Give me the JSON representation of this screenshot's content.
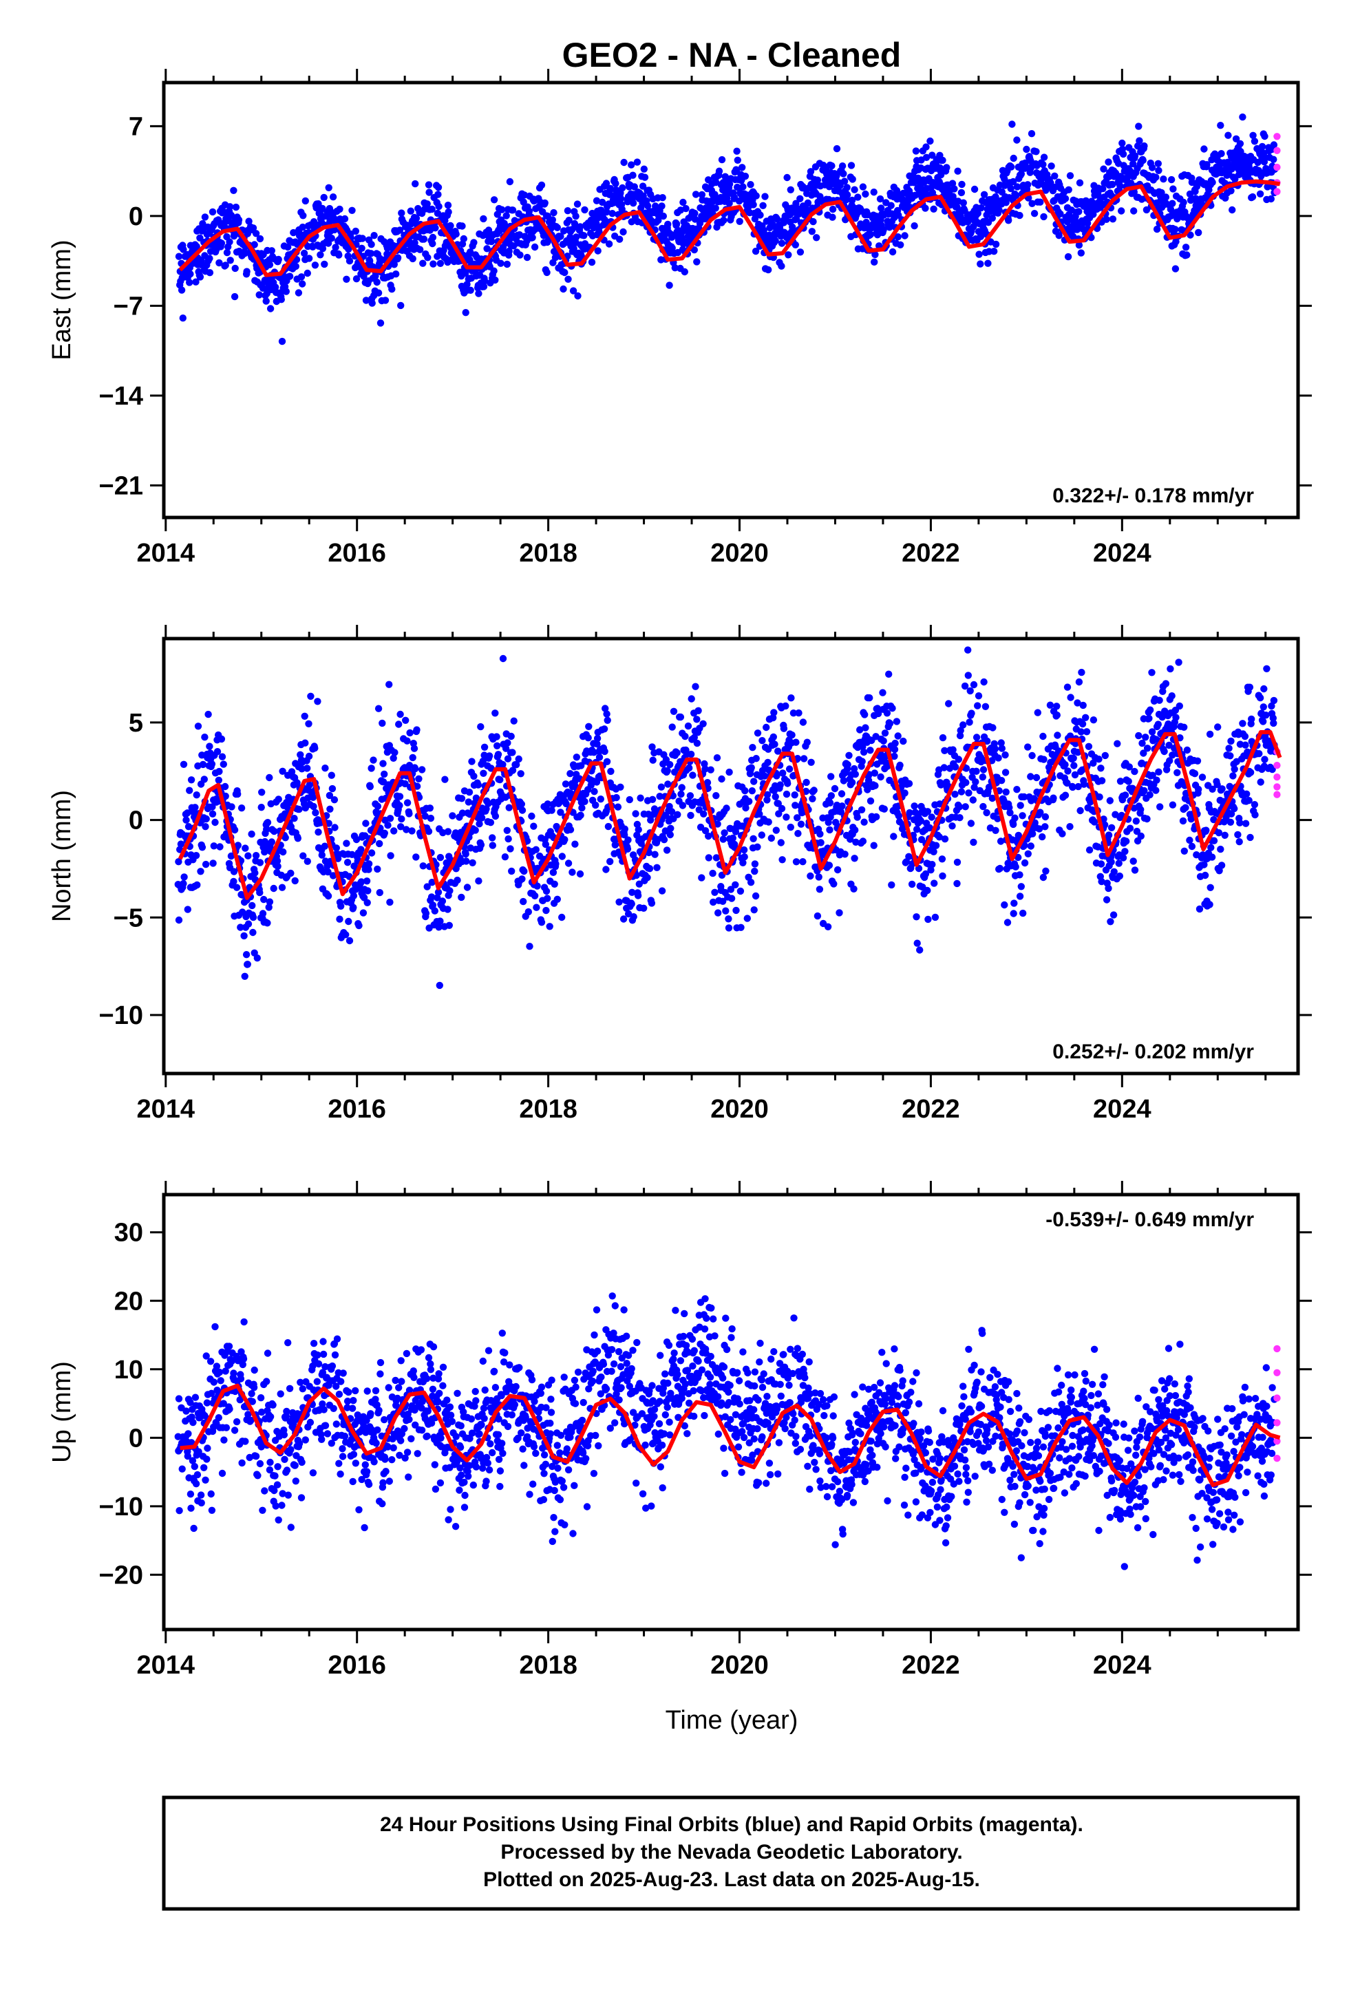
{
  "title": "GEO2  - NA - Cleaned",
  "xlabel": "Time (year)",
  "footer": {
    "line1": "24 Hour Positions Using Final Orbits (blue) and Rapid Orbits (magenta).",
    "line2": "Processed by the Nevada Geodetic Laboratory.",
    "line3": "Plotted on 2025-Aug-23. Last data on 2025-Aug-15."
  },
  "colors": {
    "final": "#0000ff",
    "rapid": "#ff33ff",
    "model": "#ff0000",
    "axis": "#000000"
  },
  "chart_data": [
    {
      "type": "scatter",
      "name": "east",
      "ylabel": "East (mm)",
      "ylim": [
        -23.5,
        10.4
      ],
      "yticks": [
        7,
        0,
        -7,
        -14,
        -21
      ],
      "ytick_labels": [
        "7",
        "0",
        "−7",
        "−14",
        "−21"
      ],
      "xlim": [
        2013.98,
        2025.84
      ],
      "xticks": [
        2014,
        2016,
        2018,
        2020,
        2022,
        2024
      ],
      "xtick_labels": [
        "2014",
        "2016",
        "2018",
        "2020",
        "2022",
        "2024"
      ],
      "rate_text": "0.322+/- 0.178 mm/yr",
      "rate_position": "bottom-right",
      "model": {
        "x": [
          2014.15,
          2014.3,
          2014.45,
          2014.6,
          2014.75,
          2014.9,
          2015.05,
          2015.2,
          2015.35,
          2015.5,
          2015.65,
          2015.8,
          2015.95,
          2016.1,
          2016.25,
          2016.4,
          2016.55,
          2016.7,
          2016.85,
          2017.0,
          2017.15,
          2017.3,
          2017.45,
          2017.6,
          2017.75,
          2017.9,
          2018.05,
          2018.2,
          2018.35,
          2018.5,
          2018.65,
          2018.8,
          2018.95,
          2019.1,
          2019.25,
          2019.4,
          2019.55,
          2019.7,
          2019.85,
          2020.0,
          2020.15,
          2020.3,
          2020.45,
          2020.6,
          2020.75,
          2020.9,
          2021.05,
          2021.2,
          2021.35,
          2021.5,
          2021.65,
          2021.8,
          2021.95,
          2022.1,
          2022.25,
          2022.4,
          2022.55,
          2022.7,
          2022.85,
          2023.0,
          2023.15,
          2023.3,
          2023.45,
          2023.6,
          2023.75,
          2023.9,
          2024.05,
          2024.2,
          2024.35,
          2024.5,
          2024.65,
          2024.8,
          2024.95,
          2025.1,
          2025.25,
          2025.4,
          2025.55,
          2025.65
        ],
        "y": [
          -4.2,
          -3.1,
          -2.0,
          -1.2,
          -1.0,
          -2.6,
          -4.6,
          -4.5,
          -3.0,
          -1.6,
          -0.9,
          -0.7,
          -2.3,
          -4.2,
          -4.3,
          -2.8,
          -1.4,
          -0.6,
          -0.4,
          -2.1,
          -4.0,
          -4.0,
          -2.5,
          -1.0,
          -0.3,
          -0.1,
          -1.8,
          -3.8,
          -3.7,
          -2.2,
          -0.7,
          0.1,
          0.3,
          -1.4,
          -3.4,
          -3.3,
          -1.8,
          -0.3,
          0.5,
          0.7,
          -1.1,
          -3.0,
          -2.9,
          -1.4,
          0.1,
          0.9,
          1.1,
          -0.8,
          -2.7,
          -2.6,
          -1.0,
          0.4,
          1.3,
          1.5,
          -0.4,
          -2.4,
          -2.2,
          -0.7,
          0.8,
          1.7,
          1.9,
          -0.1,
          -2.0,
          -1.9,
          -0.3,
          1.2,
          2.1,
          2.3,
          0.3,
          -1.7,
          -1.5,
          0.0,
          1.5,
          2.3,
          2.6,
          2.7,
          2.6,
          2.5
        ]
      },
      "rapid": {
        "x": [
          2025.62,
          2025.62,
          2025.62,
          2025.62,
          2025.62
        ],
        "y": [
          6.2,
          5.1,
          3.8,
          2.6,
          1.9
        ]
      }
    },
    {
      "type": "scatter",
      "name": "north",
      "ylabel": "North (mm)",
      "ylim": [
        -13.0,
        9.3
      ],
      "yticks": [
        5,
        0,
        -5,
        -10
      ],
      "ytick_labels": [
        "5",
        "0",
        "−5",
        "−10"
      ],
      "xlim": [
        2013.98,
        2025.84
      ],
      "xticks": [
        2014,
        2016,
        2018,
        2020,
        2022,
        2024
      ],
      "xtick_labels": [
        "2014",
        "2016",
        "2018",
        "2020",
        "2022",
        "2024"
      ],
      "rate_text": "0.252+/- 0.202 mm/yr",
      "rate_position": "bottom-right",
      "model": {
        "x": [
          2014.15,
          2014.3,
          2014.45,
          2014.55,
          2014.7,
          2014.85,
          2015.0,
          2015.15,
          2015.3,
          2015.45,
          2015.55,
          2015.7,
          2015.85,
          2016.0,
          2016.15,
          2016.3,
          2016.45,
          2016.55,
          2016.7,
          2016.85,
          2017.0,
          2017.15,
          2017.3,
          2017.45,
          2017.55,
          2017.7,
          2017.85,
          2018.0,
          2018.15,
          2018.3,
          2018.45,
          2018.55,
          2018.7,
          2018.85,
          2019.0,
          2019.15,
          2019.3,
          2019.45,
          2019.55,
          2019.7,
          2019.85,
          2020.0,
          2020.15,
          2020.3,
          2020.45,
          2020.55,
          2020.7,
          2020.85,
          2021.0,
          2021.15,
          2021.3,
          2021.45,
          2021.55,
          2021.7,
          2021.85,
          2022.0,
          2022.15,
          2022.3,
          2022.45,
          2022.55,
          2022.7,
          2022.85,
          2023.0,
          2023.15,
          2023.3,
          2023.45,
          2023.55,
          2023.7,
          2023.85,
          2024.0,
          2024.15,
          2024.3,
          2024.45,
          2024.55,
          2024.7,
          2024.85,
          2025.0,
          2025.15,
          2025.3,
          2025.45,
          2025.55,
          2025.65
        ],
        "y": [
          -2.0,
          -0.4,
          1.5,
          1.8,
          -1.2,
          -4.0,
          -3.0,
          -1.4,
          0.3,
          2.0,
          2.1,
          -1.0,
          -3.8,
          -2.7,
          -1.0,
          0.7,
          2.4,
          2.4,
          -0.7,
          -3.5,
          -2.3,
          -0.6,
          1.1,
          2.6,
          2.6,
          -0.4,
          -3.2,
          -2.0,
          -0.3,
          1.4,
          2.9,
          2.9,
          -0.1,
          -3.0,
          -1.7,
          0.1,
          1.7,
          3.1,
          3.1,
          0.2,
          -2.7,
          -1.4,
          0.4,
          2.0,
          3.4,
          3.4,
          0.5,
          -2.5,
          -1.1,
          0.7,
          2.3,
          3.6,
          3.6,
          0.7,
          -2.3,
          -0.9,
          0.9,
          2.5,
          3.9,
          3.9,
          1.0,
          -2.0,
          -0.6,
          1.2,
          2.8,
          4.1,
          4.1,
          1.3,
          -1.8,
          -0.3,
          1.5,
          3.1,
          4.4,
          4.4,
          1.6,
          -1.5,
          -0.1,
          1.3,
          2.7,
          4.5,
          4.5,
          3.2
        ]
      },
      "rapid": {
        "x": [
          2025.62,
          2025.62,
          2025.62,
          2025.62,
          2025.62
        ],
        "y": [
          3.5,
          2.8,
          2.2,
          1.7,
          1.3
        ]
      }
    },
    {
      "type": "scatter",
      "name": "up",
      "ylabel": "Up (mm)",
      "ylim": [
        -28,
        35.5
      ],
      "yticks": [
        30,
        20,
        10,
        0,
        -10,
        -20
      ],
      "ytick_labels": [
        "30",
        "20",
        "10",
        "0",
        "−10",
        "−20"
      ],
      "xlim": [
        2013.98,
        2025.84
      ],
      "xticks": [
        2014,
        2016,
        2018,
        2020,
        2022,
        2024
      ],
      "xtick_labels": [
        "2014",
        "2016",
        "2018",
        "2020",
        "2022",
        "2024"
      ],
      "rate_text": "-0.539+/- 0.649 mm/yr",
      "rate_position": "top-right",
      "model": {
        "x": [
          2014.15,
          2014.3,
          2014.45,
          2014.6,
          2014.75,
          2014.9,
          2015.05,
          2015.2,
          2015.35,
          2015.5,
          2015.65,
          2015.8,
          2015.95,
          2016.1,
          2016.25,
          2016.4,
          2016.55,
          2016.7,
          2016.85,
          2017.0,
          2017.15,
          2017.3,
          2017.45,
          2017.6,
          2017.75,
          2017.9,
          2018.05,
          2018.2,
          2018.35,
          2018.5,
          2018.65,
          2018.8,
          2018.95,
          2019.1,
          2019.25,
          2019.4,
          2019.55,
          2019.7,
          2019.85,
          2020.0,
          2020.15,
          2020.3,
          2020.45,
          2020.6,
          2020.75,
          2020.9,
          2021.05,
          2021.2,
          2021.35,
          2021.5,
          2021.65,
          2021.8,
          2021.95,
          2022.1,
          2022.25,
          2022.4,
          2022.55,
          2022.7,
          2022.85,
          2023.0,
          2023.15,
          2023.3,
          2023.45,
          2023.6,
          2023.75,
          2023.9,
          2024.05,
          2024.2,
          2024.35,
          2024.5,
          2024.65,
          2024.8,
          2024.95,
          2025.1,
          2025.25,
          2025.4,
          2025.55,
          2025.65
        ],
        "y": [
          -1.5,
          -1.3,
          2.5,
          6.8,
          7.6,
          4.0,
          -0.8,
          -2.2,
          0.5,
          5.2,
          7.2,
          5.4,
          1.0,
          -2.3,
          -1.5,
          3.0,
          6.3,
          6.6,
          3.2,
          -1.3,
          -3.3,
          -0.9,
          3.7,
          6.1,
          5.8,
          1.6,
          -2.8,
          -3.5,
          0.4,
          4.8,
          5.7,
          3.6,
          -1.2,
          -3.9,
          -2.0,
          2.6,
          5.2,
          4.8,
          0.8,
          -3.5,
          -4.3,
          -0.6,
          3.6,
          4.7,
          2.7,
          -2.0,
          -5.0,
          -3.8,
          0.8,
          3.8,
          4.1,
          0.6,
          -4.2,
          -5.6,
          -2.0,
          2.2,
          3.5,
          2.3,
          -2.3,
          -6.0,
          -5.3,
          -0.8,
          2.5,
          3.0,
          0.3,
          -4.5,
          -6.6,
          -3.7,
          0.8,
          2.6,
          1.8,
          -2.9,
          -6.9,
          -6.2,
          -2.0,
          1.9,
          0.4,
          0.0
        ]
      },
      "rapid": {
        "x": [
          2025.62,
          2025.62,
          2025.62,
          2025.62,
          2025.62,
          2025.62
        ],
        "y": [
          13.0,
          9.5,
          5.8,
          2.2,
          -0.5,
          -3.0
        ]
      }
    }
  ]
}
